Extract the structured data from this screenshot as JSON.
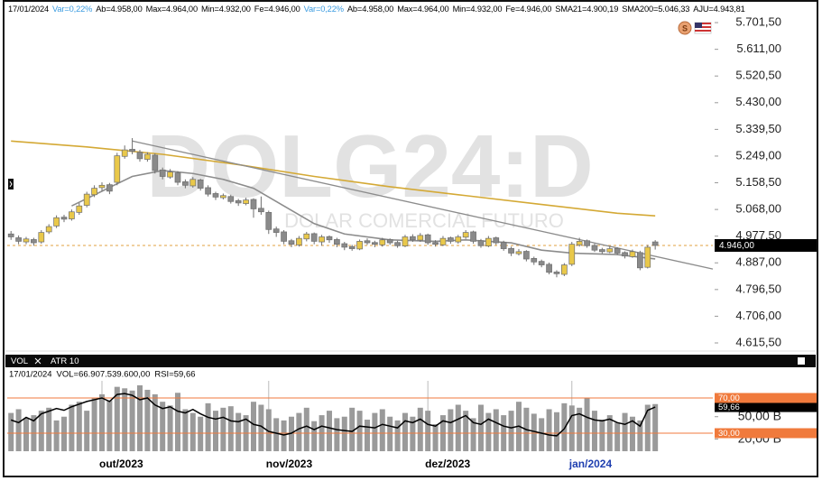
{
  "header": {
    "items": [
      {
        "text": "17/01/2024",
        "color": "#000000"
      },
      {
        "text": "Var=0,22%",
        "color": "#3a9be0"
      },
      {
        "text": "Ab=4.958,00",
        "color": "#000000"
      },
      {
        "text": "Max=4.964,00",
        "color": "#000000"
      },
      {
        "text": "Min=4.932,00",
        "color": "#000000"
      },
      {
        "text": "Fe=4.946,00",
        "color": "#000000"
      },
      {
        "text": "Var=0,22%",
        "color": "#3a9be0"
      },
      {
        "text": "Ab=4.958,00",
        "color": "#000000"
      },
      {
        "text": "Max=4.964,00",
        "color": "#000000"
      },
      {
        "text": "Min=4.932,00",
        "color": "#000000"
      },
      {
        "text": "Fe=4.946,00",
        "color": "#000000"
      },
      {
        "text": "SMA21=4.900,19",
        "color": "#000000"
      },
      {
        "text": "SMA200=5.046,33",
        "color": "#000000"
      },
      {
        "text": "AJU=4.943,81",
        "color": "#000000"
      }
    ],
    "currency_icon": "S"
  },
  "chart_data": [
    {
      "type": "candlestick",
      "watermark": "DOLG24:D",
      "watermark_subtitle": "DOLAR COMERCIAL FUTURO",
      "up_color": "#e9c84a",
      "down_color": "#8a8a8a",
      "wick_color": "#6e6e6e",
      "xlim": [
        -0.5,
        92.6
      ],
      "ylim": [
        4591,
        5717
      ],
      "yticks": [
        {
          "value": 5701.5,
          "label": "5.701,50"
        },
        {
          "value": 5611,
          "label": "5.611,00"
        },
        {
          "value": 5520.5,
          "label": "5.520,50"
        },
        {
          "value": 5430,
          "label": "5.430,00"
        },
        {
          "value": 5339.5,
          "label": "5.339,50"
        },
        {
          "value": 5249,
          "label": "5.249,00"
        },
        {
          "value": 5158.5,
          "label": "5.158,50"
        },
        {
          "value": 5068,
          "label": "5.068,00"
        },
        {
          "value": 4977.5,
          "label": "4.977,50"
        },
        {
          "value": 4887,
          "label": "4.887,00"
        },
        {
          "value": 4796.5,
          "label": "4.796,50"
        },
        {
          "value": 4706,
          "label": "4.706,00"
        },
        {
          "value": 4615.5,
          "label": "4.615,50"
        }
      ],
      "last_price": {
        "value": 4946,
        "label": "4.946,00"
      },
      "candles": [
        [
          4985,
          4995,
          4965,
          4975
        ],
        [
          4972,
          4980,
          4950,
          4960
        ],
        [
          4958,
          4975,
          4950,
          4968
        ],
        [
          4966,
          4972,
          4945,
          4955
        ],
        [
          4958,
          4998,
          4952,
          4990
        ],
        [
          4992,
          5018,
          4985,
          5010
        ],
        [
          5012,
          5048,
          5005,
          5040
        ],
        [
          5042,
          5050,
          5025,
          5035
        ],
        [
          5036,
          5068,
          5030,
          5060
        ],
        [
          5058,
          5090,
          5050,
          5080
        ],
        [
          5082,
          5128,
          5075,
          5120
        ],
        [
          5118,
          5150,
          5110,
          5140
        ],
        [
          5142,
          5160,
          5130,
          5150
        ],
        [
          5152,
          5158,
          5120,
          5130
        ],
        [
          5160,
          5260,
          5150,
          5250
        ],
        [
          5248,
          5285,
          5240,
          5270
        ],
        [
          5272,
          5310,
          5255,
          5265
        ],
        [
          5262,
          5270,
          5230,
          5240
        ],
        [
          5238,
          5262,
          5230,
          5255
        ],
        [
          5252,
          5258,
          5190,
          5200
        ],
        [
          5202,
          5210,
          5170,
          5180
        ],
        [
          5178,
          5205,
          5172,
          5195
        ],
        [
          5192,
          5198,
          5150,
          5160
        ],
        [
          5162,
          5170,
          5140,
          5150
        ],
        [
          5148,
          5178,
          5142,
          5170
        ],
        [
          5168,
          5172,
          5132,
          5140
        ],
        [
          5142,
          5150,
          5112,
          5120
        ],
        [
          5122,
          5128,
          5100,
          5110
        ],
        [
          5108,
          5122,
          5102,
          5115
        ],
        [
          5112,
          5118,
          5088,
          5095
        ],
        [
          5098,
          5104,
          5080,
          5090
        ],
        [
          5088,
          5108,
          5082,
          5100
        ],
        [
          5102,
          5106,
          5040,
          5070
        ],
        [
          5072,
          5112,
          5050,
          5060
        ],
        [
          5058,
          5064,
          4985,
          5000
        ],
        [
          5002,
          5010,
          4975,
          4990
        ],
        [
          4992,
          4998,
          4950,
          4960
        ],
        [
          4962,
          4968,
          4940,
          4950
        ],
        [
          4948,
          4978,
          4942,
          4970
        ],
        [
          4968,
          4992,
          4960,
          4985
        ],
        [
          4986,
          4990,
          4950,
          4960
        ],
        [
          4958,
          4982,
          4945,
          4975
        ],
        [
          4976,
          4980,
          4955,
          4965
        ],
        [
          4966,
          4972,
          4940,
          4950
        ],
        [
          4952,
          4958,
          4930,
          4940
        ],
        [
          4942,
          4948,
          4928,
          4935
        ],
        [
          4934,
          4966,
          4930,
          4960
        ],
        [
          4962,
          4970,
          4948,
          4955
        ],
        [
          4956,
          4962,
          4940,
          4950
        ],
        [
          4948,
          4972,
          4942,
          4965
        ],
        [
          4966,
          4970,
          4948,
          4955
        ],
        [
          4956,
          4962,
          4938,
          4945
        ],
        [
          4944,
          4982,
          4940,
          4975
        ],
        [
          4976,
          4984,
          4958,
          4965
        ],
        [
          4964,
          4988,
          4958,
          4980
        ],
        [
          4982,
          4986,
          4948,
          4955
        ],
        [
          4956,
          4964,
          4942,
          4950
        ],
        [
          4948,
          4978,
          4944,
          4970
        ],
        [
          4972,
          4976,
          4952,
          4960
        ],
        [
          4958,
          4982,
          4952,
          4975
        ],
        [
          4974,
          4998,
          4968,
          4990
        ],
        [
          4992,
          4996,
          4952,
          4960
        ],
        [
          4962,
          4968,
          4938,
          4945
        ],
        [
          4944,
          4978,
          4940,
          4970
        ],
        [
          4972,
          4976,
          4948,
          4955
        ],
        [
          4956,
          4962,
          4928,
          4935
        ],
        [
          4936,
          4942,
          4910,
          4920
        ],
        [
          4918,
          4934,
          4912,
          4925
        ],
        [
          4926,
          4930,
          4892,
          4900
        ],
        [
          4902,
          4908,
          4880,
          4890
        ],
        [
          4892,
          4898,
          4872,
          4880
        ],
        [
          4882,
          4888,
          4848,
          4855
        ],
        [
          4856,
          4862,
          4838,
          4850
        ],
        [
          4848,
          4886,
          4842,
          4880
        ],
        [
          4882,
          4958,
          4876,
          4950
        ],
        [
          4948,
          4972,
          4942,
          4960
        ],
        [
          4962,
          4966,
          4938,
          4945
        ],
        [
          4946,
          4952,
          4924,
          4930
        ],
        [
          4932,
          4938,
          4918,
          4925
        ],
        [
          4924,
          4942,
          4920,
          4935
        ],
        [
          4936,
          4940,
          4914,
          4920
        ],
        [
          4922,
          4926,
          4902,
          4910
        ],
        [
          4908,
          4932,
          4904,
          4925
        ],
        [
          4922,
          4928,
          4862,
          4870
        ],
        [
          4872,
          4948,
          4868,
          4940
        ],
        [
          4958,
          4964,
          4932,
          4946
        ]
      ],
      "series": [
        {
          "name": "SMA200",
          "color": "#d4a935",
          "x": [
            0,
            10,
            20,
            30,
            40,
            50,
            60,
            70,
            80,
            85
          ],
          "values": [
            5300,
            5280,
            5255,
            5220,
            5180,
            5145,
            5115,
            5085,
            5055,
            5046.33
          ]
        },
        {
          "name": "SMA21",
          "color": "#8c8c8c",
          "x": [
            8,
            12,
            16,
            20,
            24,
            28,
            32,
            36,
            40,
            44,
            50,
            56,
            60,
            66,
            70,
            74,
            80,
            85
          ],
          "values": [
            5080,
            5130,
            5180,
            5200,
            5190,
            5170,
            5140,
            5080,
            5020,
            4985,
            4965,
            4960,
            4965,
            4955,
            4930,
            4920,
            4915,
            4900.19
          ]
        }
      ],
      "trendline": {
        "color": "#8c8c8c",
        "x": [
          16,
          92.6
        ],
        "values": [
          5300,
          4866
        ]
      }
    },
    {
      "type": "volume-rsi",
      "tabs": [
        "VOL",
        "ATR 10"
      ],
      "info": [
        "17/01/2024",
        "VOL=66.907.539.600,00",
        "RSI=59,66"
      ],
      "xlim": [
        -0.5,
        92.6
      ],
      "xticks": [
        {
          "value": 12,
          "label": "out/2023"
        },
        {
          "value": 34,
          "label": "nov/2023"
        },
        {
          "value": 55,
          "label": "dez/2023"
        },
        {
          "value": 74,
          "label": "jan/2024"
        }
      ],
      "xtick_colors": [
        "#000000",
        "#000000",
        "#000000",
        "#1f3fb0"
      ],
      "ylim": [
        3.75,
        113.75
      ],
      "yticks": [
        {
          "value": 20,
          "label": "20,00 B"
        },
        {
          "value": 50,
          "label": "50,00 B"
        }
      ],
      "y2lim": [
        9.5,
        102.8
      ],
      "y2ticks": [
        {
          "value": 70,
          "label": "70,00"
        },
        {
          "value": 30,
          "label": "30,00"
        }
      ],
      "level_color": "#f07a3c",
      "series": [
        {
          "name": "VOL",
          "color": "#9a9a9a",
          "values": [
            55,
            60,
            48,
            52,
            58,
            62,
            45,
            50,
            66,
            70,
            58,
            75,
            80,
            72,
            90,
            88,
            85,
            92,
            86,
            80,
            70,
            65,
            82,
            60,
            55,
            50,
            68,
            58,
            62,
            64,
            55,
            52,
            70,
            66,
            60,
            48,
            45,
            50,
            55,
            62,
            44,
            52,
            58,
            48,
            50,
            62,
            58,
            46,
            55,
            60,
            50,
            45,
            55,
            50,
            62,
            58,
            40,
            52,
            60,
            66,
            58,
            48,
            66,
            55,
            60,
            52,
            58,
            70,
            62,
            54,
            48,
            60,
            56,
            68,
            65,
            62,
            75,
            58,
            46,
            52,
            42,
            55,
            50,
            45,
            66,
            66.9075396
          ]
        },
        {
          "name": "RSI",
          "color": "#000000",
          "axis": "y2",
          "last_label": "59,66",
          "values": [
            45,
            42,
            48,
            44,
            52,
            55,
            58,
            56,
            60,
            63,
            66,
            68,
            70,
            66,
            74,
            75,
            73,
            68,
            70,
            62,
            58,
            60,
            55,
            53,
            57,
            52,
            48,
            46,
            48,
            44,
            43,
            46,
            40,
            38,
            32,
            30,
            28,
            30,
            35,
            38,
            34,
            38,
            36,
            34,
            33,
            32,
            38,
            37,
            36,
            40,
            38,
            36,
            44,
            42,
            46,
            40,
            38,
            44,
            42,
            46,
            50,
            42,
            40,
            46,
            42,
            38,
            36,
            38,
            34,
            32,
            30,
            28,
            27,
            35,
            50,
            52,
            48,
            45,
            44,
            46,
            42,
            40,
            44,
            38,
            56,
            59.66
          ]
        }
      ]
    }
  ]
}
